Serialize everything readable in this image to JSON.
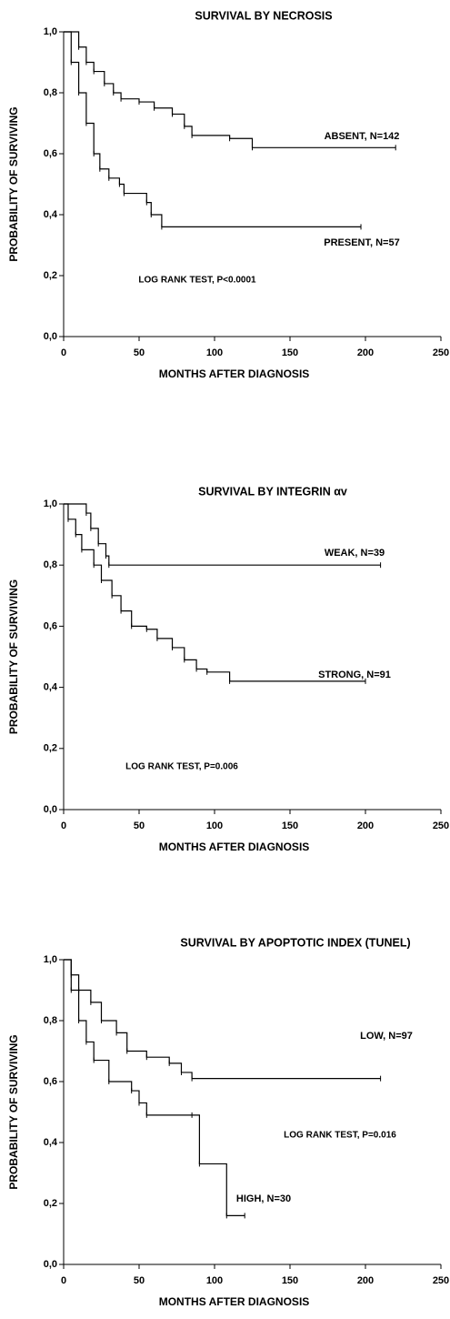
{
  "chart_data": [
    {
      "type": "step",
      "title": "SURVIVAL BY NECROSIS",
      "x_label": "MONTHS AFTER DIAGNOSIS",
      "y_label": "PROBABILITY OF SURVIVING",
      "annotation": "LOG RANK TEST, P<0.0001",
      "xlim": [
        0,
        250
      ],
      "xticks": [
        0,
        50,
        100,
        150,
        200,
        250
      ],
      "ylim": [
        0,
        1
      ],
      "yticks": [
        {
          "value": 0,
          "label": "0,0"
        },
        {
          "value": 0.2,
          "label": "0,2"
        },
        {
          "value": 0.4,
          "label": "0,4"
        },
        {
          "value": 0.6,
          "label": "0,6"
        },
        {
          "value": 0.8,
          "label": "0,8"
        },
        {
          "value": 1,
          "label": "1,0"
        }
      ],
      "series": [
        {
          "name": "ABSENT, N=142",
          "color": "#000000",
          "x": [
            0,
            10,
            15,
            20,
            27,
            33,
            38,
            50,
            60,
            72,
            80,
            85,
            110,
            125,
            220
          ],
          "values": [
            1,
            0.95,
            0.9,
            0.87,
            0.83,
            0.8,
            0.78,
            0.77,
            0.75,
            0.73,
            0.69,
            0.66,
            0.65,
            0.62,
            0.62
          ]
        },
        {
          "name": "PRESENT, N=57",
          "color": "#000000",
          "x": [
            0,
            5,
            10,
            15,
            20,
            24,
            30,
            37,
            40,
            55,
            58,
            65,
            197
          ],
          "values": [
            1,
            0.9,
            0.8,
            0.7,
            0.6,
            0.55,
            0.52,
            0.5,
            0.47,
            0.44,
            0.4,
            0.36,
            0.36
          ]
        }
      ]
    },
    {
      "type": "step",
      "title": "SURVIVAL BY INTEGRIN αv",
      "x_label": "MONTHS AFTER DIAGNOSIS",
      "y_label": "PROBABILITY OF SURVIVING",
      "annotation": "LOG RANK TEST, P=0.006",
      "xlim": [
        0,
        250
      ],
      "xticks": [
        0,
        50,
        100,
        150,
        200,
        250
      ],
      "ylim": [
        0,
        1
      ],
      "yticks": [
        {
          "value": 0,
          "label": "0,0"
        },
        {
          "value": 0.2,
          "label": "0,2"
        },
        {
          "value": 0.4,
          "label": "0,4"
        },
        {
          "value": 0.6,
          "label": "0,6"
        },
        {
          "value": 0.8,
          "label": "0,8"
        },
        {
          "value": 1,
          "label": "1,0"
        }
      ],
      "series": [
        {
          "name": "WEAK, N=39",
          "color": "#000000",
          "x": [
            0,
            15,
            18,
            23,
            28,
            30,
            210
          ],
          "values": [
            1,
            0.97,
            0.92,
            0.87,
            0.83,
            0.8,
            0.8
          ]
        },
        {
          "name": "STRONG, N=91",
          "color": "#000000",
          "x": [
            0,
            3,
            8,
            12,
            20,
            25,
            32,
            38,
            45,
            55,
            62,
            72,
            80,
            88,
            95,
            110,
            200
          ],
          "values": [
            1,
            0.95,
            0.9,
            0.85,
            0.8,
            0.75,
            0.7,
            0.65,
            0.6,
            0.59,
            0.56,
            0.53,
            0.49,
            0.46,
            0.45,
            0.42,
            0.42
          ]
        }
      ]
    },
    {
      "type": "step",
      "title": "SURVIVAL BY APOPTOTIC INDEX (TUNEL)",
      "x_label": "MONTHS AFTER DIAGNOSIS",
      "y_label": "PROBABILITY OF SURVIVING",
      "annotation": "LOG RANK TEST, P=0.016",
      "xlim": [
        0,
        250
      ],
      "xticks": [
        0,
        50,
        100,
        150,
        200,
        250
      ],
      "ylim": [
        0,
        1
      ],
      "yticks": [
        {
          "value": 0,
          "label": "0,0"
        },
        {
          "value": 0.2,
          "label": "0,2"
        },
        {
          "value": 0.4,
          "label": "0,4"
        },
        {
          "value": 0.6,
          "label": "0,6"
        },
        {
          "value": 0.8,
          "label": "0,8"
        },
        {
          "value": 1,
          "label": "1,0"
        }
      ],
      "series": [
        {
          "name": "LOW, N=97",
          "color": "#000000",
          "x": [
            0,
            5,
            10,
            18,
            25,
            35,
            42,
            55,
            70,
            78,
            85,
            210
          ],
          "values": [
            1,
            0.95,
            0.9,
            0.86,
            0.8,
            0.76,
            0.7,
            0.68,
            0.66,
            0.63,
            0.61,
            0.61
          ]
        },
        {
          "name": "HIGH, N=30",
          "color": "#000000",
          "x": [
            0,
            5,
            10,
            15,
            20,
            30,
            45,
            50,
            55,
            85,
            90,
            108,
            120
          ],
          "values": [
            1,
            0.9,
            0.8,
            0.73,
            0.67,
            0.6,
            0.57,
            0.53,
            0.49,
            0.49,
            0.33,
            0.16,
            0.16
          ]
        }
      ]
    }
  ]
}
